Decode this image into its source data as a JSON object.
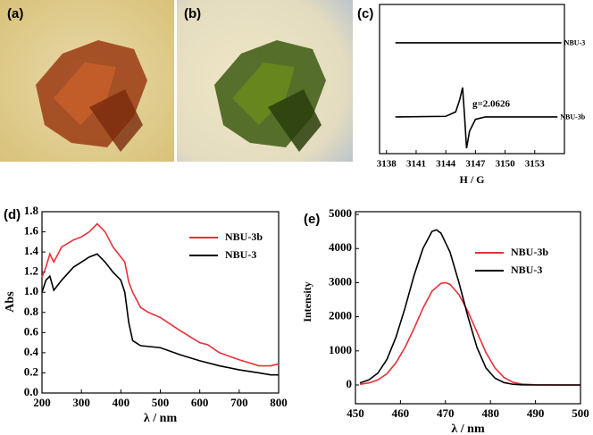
{
  "photos": [
    {
      "label": "(a)"
    },
    {
      "label": "(b)"
    }
  ],
  "chart_data": [
    {
      "type": "line",
      "panel_label": "(c)",
      "xlabel": "H / G",
      "xlim": [
        3137.3,
        3156
      ],
      "ylim": [
        0,
        10
      ],
      "xticks": [
        3138,
        3141,
        3144,
        3147,
        3150,
        3153
      ],
      "annotation": "g=2.0626",
      "series_labels_at_end": true,
      "series": [
        {
          "name": "NBU-3",
          "color": "#000000",
          "x": [
            3138.9,
            3155.7
          ],
          "values": [
            7.43,
            7.43
          ]
        },
        {
          "name": "NBU-3b",
          "color": "#000000",
          "x": [
            3138.9,
            3144,
            3145,
            3145.4,
            3145.7,
            3145.9,
            3146.1,
            3146.4,
            3147,
            3148,
            3155.3
          ],
          "values": [
            2.46,
            2.5,
            2.8,
            3.6,
            4.43,
            2.5,
            0.36,
            1.5,
            2.3,
            2.46,
            2.46
          ]
        }
      ]
    },
    {
      "type": "line",
      "panel_label": "(d)",
      "xlabel": "λ / nm",
      "ylabel": "Abs",
      "xlim": [
        200,
        800
      ],
      "ylim": [
        0,
        1.8
      ],
      "xticks": [
        200,
        300,
        400,
        500,
        600,
        700,
        800
      ],
      "yticks": [
        {
          "value": 0,
          "label": "0.0"
        },
        0.2,
        0.4,
        0.6,
        0.8,
        {
          "value": 1,
          "label": "1.0"
        },
        1.2,
        1.4,
        1.6,
        1.8
      ],
      "legend": "upper right",
      "series": [
        {
          "name": "NBU-3b",
          "color": "#e8303a",
          "x": [
            200,
            210,
            220,
            230,
            250,
            280,
            300,
            320,
            340,
            360,
            380,
            400,
            410,
            420,
            430,
            450,
            470,
            500,
            550,
            600,
            620,
            650,
            700,
            750,
            780,
            800
          ],
          "values": [
            1.15,
            1.25,
            1.38,
            1.3,
            1.45,
            1.52,
            1.55,
            1.6,
            1.68,
            1.6,
            1.45,
            1.35,
            1.3,
            1.1,
            1.0,
            0.85,
            0.8,
            0.75,
            0.62,
            0.5,
            0.48,
            0.4,
            0.33,
            0.27,
            0.27,
            0.29
          ]
        },
        {
          "name": "NBU-3",
          "color": "#000000",
          "x": [
            200,
            210,
            220,
            230,
            250,
            280,
            300,
            320,
            340,
            360,
            380,
            400,
            410,
            420,
            430,
            450,
            500,
            550,
            600,
            650,
            700,
            750,
            780,
            800
          ],
          "values": [
            1.0,
            1.12,
            1.16,
            1.02,
            1.12,
            1.25,
            1.3,
            1.35,
            1.38,
            1.3,
            1.2,
            1.12,
            1.0,
            0.7,
            0.52,
            0.47,
            0.45,
            0.38,
            0.32,
            0.27,
            0.23,
            0.2,
            0.18,
            0.18
          ]
        }
      ]
    },
    {
      "type": "line",
      "panel_label": "(e)",
      "xlabel": "λ / nm",
      "ylabel": "Intensity",
      "xlim": [
        450,
        500
      ],
      "ylim": [
        -550,
        5080
      ],
      "xticks": [
        450,
        460,
        470,
        480,
        490,
        500
      ],
      "yticks": [
        0,
        1000,
        2000,
        3000,
        4000,
        5000
      ],
      "legend": "center right",
      "series": [
        {
          "name": "NBU-3b",
          "color": "#e8303a",
          "x": [
            451,
            453,
            455,
            457,
            459,
            461,
            463,
            465,
            467,
            469,
            470,
            471,
            473,
            475,
            477,
            479,
            481,
            483,
            485,
            487,
            490,
            495,
            500
          ],
          "values": [
            20,
            60,
            150,
            330,
            650,
            1100,
            1650,
            2250,
            2750,
            2980,
            3000,
            2950,
            2650,
            2150,
            1550,
            950,
            500,
            220,
            80,
            25,
            5,
            0,
            0
          ]
        },
        {
          "name": "NBU-3",
          "color": "#000000",
          "x": [
            451,
            453,
            455,
            457,
            459,
            461,
            463,
            465,
            467,
            468,
            469,
            471,
            473,
            475,
            477,
            479,
            481,
            483,
            485,
            487,
            490,
            495,
            500
          ],
          "values": [
            60,
            150,
            350,
            750,
            1400,
            2250,
            3200,
            4000,
            4500,
            4550,
            4450,
            3900,
            3000,
            2000,
            1100,
            500,
            200,
            70,
            20,
            5,
            0,
            0,
            0
          ]
        }
      ]
    }
  ]
}
